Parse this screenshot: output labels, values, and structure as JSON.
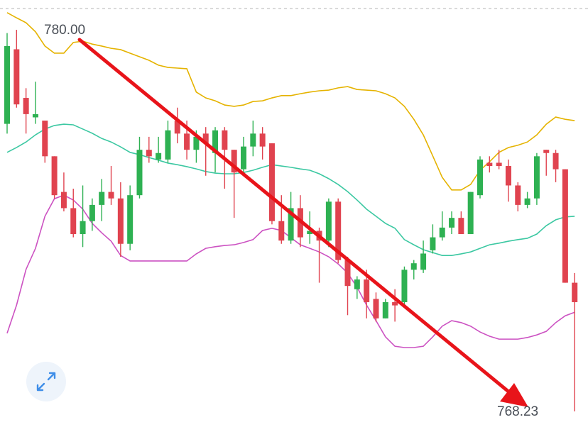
{
  "chart_data": {
    "type": "candlestick",
    "high_label": "780.00",
    "low_label": "768.23",
    "up_color": "#2eb152",
    "down_color": "#e0434f",
    "ylim": [
      767.75,
      780.92
    ],
    "open": [
      777.1,
      779.4,
      777.9,
      777.3,
      777.2,
      776.1,
      775.0,
      774.5,
      773.7,
      774.1,
      774.6,
      775.0,
      774.8,
      773.4,
      774.9,
      776.3,
      776.0,
      776.0,
      777.2,
      776.8,
      776.3,
      776.8,
      776.2,
      776.9,
      776.3,
      775.7,
      776.4,
      776.8,
      776.5,
      774.1,
      773.5,
      774.5,
      773.7,
      773.8,
      773.5,
      774.7,
      772.9,
      772.0,
      772.3,
      771.7,
      771.1,
      771.6,
      771.6,
      772.6,
      772.6,
      773.2,
      773.6,
      773.9,
      774.2,
      773.7,
      774.9,
      775.9,
      775.9,
      775.8,
      775.2,
      774.6,
      774.8,
      776.3,
      776.2,
      775.7,
      772.2
    ],
    "high": [
      779.9,
      780.0,
      778.2,
      778.4,
      777.2,
      776.1,
      775.6,
      775.1,
      775.2,
      774.8,
      775.4,
      775.8,
      775.3,
      775.2,
      776.7,
      776.7,
      776.7,
      777.2,
      777.6,
      777.2,
      776.9,
      777.0,
      777.0,
      777.0,
      776.3,
      776.7,
      777.2,
      777.0,
      776.5,
      774.9,
      775.0,
      774.9,
      774.4,
      773.9,
      774.8,
      774.8,
      773.0,
      772.4,
      772.6,
      771.9,
      771.7,
      772.0,
      772.7,
      772.9,
      773.5,
      774.0,
      774.4,
      774.4,
      774.4,
      775.0,
      776.1,
      776.1,
      776.3,
      776.0,
      775.3,
      775.0,
      776.2,
      776.3,
      776.3,
      775.7,
      772.5
    ],
    "low": [
      776.8,
      777.6,
      776.8,
      777.1,
      775.9,
      774.8,
      774.4,
      773.6,
      773.3,
      773.8,
      774.1,
      774.6,
      773.0,
      773.2,
      774.8,
      775.9,
      775.9,
      775.9,
      776.5,
      776.0,
      775.9,
      775.5,
      775.6,
      775.1,
      774.2,
      775.5,
      776.1,
      776.0,
      774.0,
      773.4,
      773.4,
      773.3,
      773.4,
      772.2,
      773.3,
      772.8,
      771.2,
      771.7,
      771.1,
      771.0,
      771.1,
      771.0,
      771.5,
      772.3,
      772.5,
      773.1,
      773.5,
      773.7,
      773.7,
      773.7,
      774.8,
      775.6,
      775.7,
      774.7,
      774.4,
      774.5,
      774.6,
      775.5,
      775.3,
      772.2,
      768.23
    ],
    "close": [
      779.5,
      777.7,
      777.4,
      777.4,
      776.1,
      774.9,
      774.5,
      773.7,
      774.1,
      774.6,
      775.0,
      774.8,
      773.4,
      774.9,
      776.3,
      776.1,
      776.2,
      776.9,
      776.8,
      776.3,
      776.7,
      776.5,
      776.9,
      776.3,
      775.6,
      776.4,
      776.8,
      776.4,
      774.1,
      773.5,
      774.5,
      773.6,
      773.8,
      773.5,
      774.7,
      772.9,
      772.1,
      772.3,
      771.6,
      771.1,
      771.6,
      771.5,
      772.6,
      772.8,
      773.1,
      773.6,
      773.9,
      774.2,
      773.7,
      775.0,
      776.0,
      775.8,
      775.8,
      775.2,
      774.6,
      774.8,
      776.1,
      776.2,
      775.7,
      772.2,
      771.6
    ],
    "upper_band": {
      "color": "#e5b300",
      "values": [
        780.53,
        780.37,
        780.22,
        779.94,
        779.5,
        779.28,
        779.28,
        779.61,
        779.65,
        779.56,
        779.5,
        779.43,
        779.39,
        779.28,
        779.17,
        779.06,
        778.91,
        778.84,
        778.82,
        778.8,
        778.08,
        777.9,
        777.81,
        777.68,
        777.64,
        777.68,
        777.79,
        777.81,
        777.9,
        777.97,
        777.97,
        778.03,
        778.08,
        778.12,
        778.14,
        778.21,
        778.25,
        778.16,
        778.14,
        778.12,
        778.03,
        777.9,
        777.64,
        777.24,
        776.76,
        776.11,
        775.45,
        775.06,
        775.06,
        775.23,
        775.67,
        775.93,
        776.22,
        776.37,
        776.44,
        776.54,
        776.76,
        777.09,
        777.31,
        777.24,
        777.2
      ]
    },
    "middle_band": {
      "color": "#3cc8a2",
      "values": [
        776.22,
        776.37,
        776.54,
        776.76,
        776.94,
        777.05,
        777.09,
        777.07,
        776.94,
        776.81,
        776.65,
        776.54,
        776.39,
        776.22,
        776.15,
        776.06,
        775.98,
        775.89,
        775.84,
        775.78,
        775.71,
        775.63,
        775.58,
        775.56,
        775.56,
        775.6,
        775.67,
        775.76,
        775.84,
        775.8,
        775.76,
        775.71,
        775.67,
        775.56,
        775.41,
        775.23,
        775.01,
        774.75,
        774.47,
        774.25,
        774.03,
        773.88,
        773.53,
        773.37,
        773.22,
        773.13,
        773.04,
        773.04,
        773.09,
        773.15,
        773.26,
        773.37,
        773.42,
        773.48,
        773.53,
        773.57,
        773.7,
        773.96,
        774.14,
        774.23,
        774.25
      ]
    },
    "lower_band": {
      "color": "#cc52c2",
      "values": [
        770.64,
        771.51,
        772.61,
        773.26,
        774.25,
        774.79,
        774.9,
        774.75,
        774.47,
        774.03,
        773.74,
        773.48,
        773.04,
        772.87,
        772.87,
        772.87,
        772.87,
        772.87,
        772.87,
        772.87,
        773.09,
        773.26,
        773.31,
        773.35,
        773.37,
        773.44,
        773.53,
        773.81,
        773.88,
        773.81,
        773.59,
        773.37,
        773.26,
        773.15,
        773.0,
        772.78,
        772.5,
        772.06,
        771.51,
        771.03,
        770.53,
        770.24,
        770.2,
        770.2,
        770.24,
        770.53,
        770.86,
        771.03,
        770.97,
        770.86,
        770.68,
        770.55,
        770.46,
        770.46,
        770.46,
        770.51,
        770.59,
        770.7,
        770.97,
        771.18,
        771.29
      ]
    }
  }
}
